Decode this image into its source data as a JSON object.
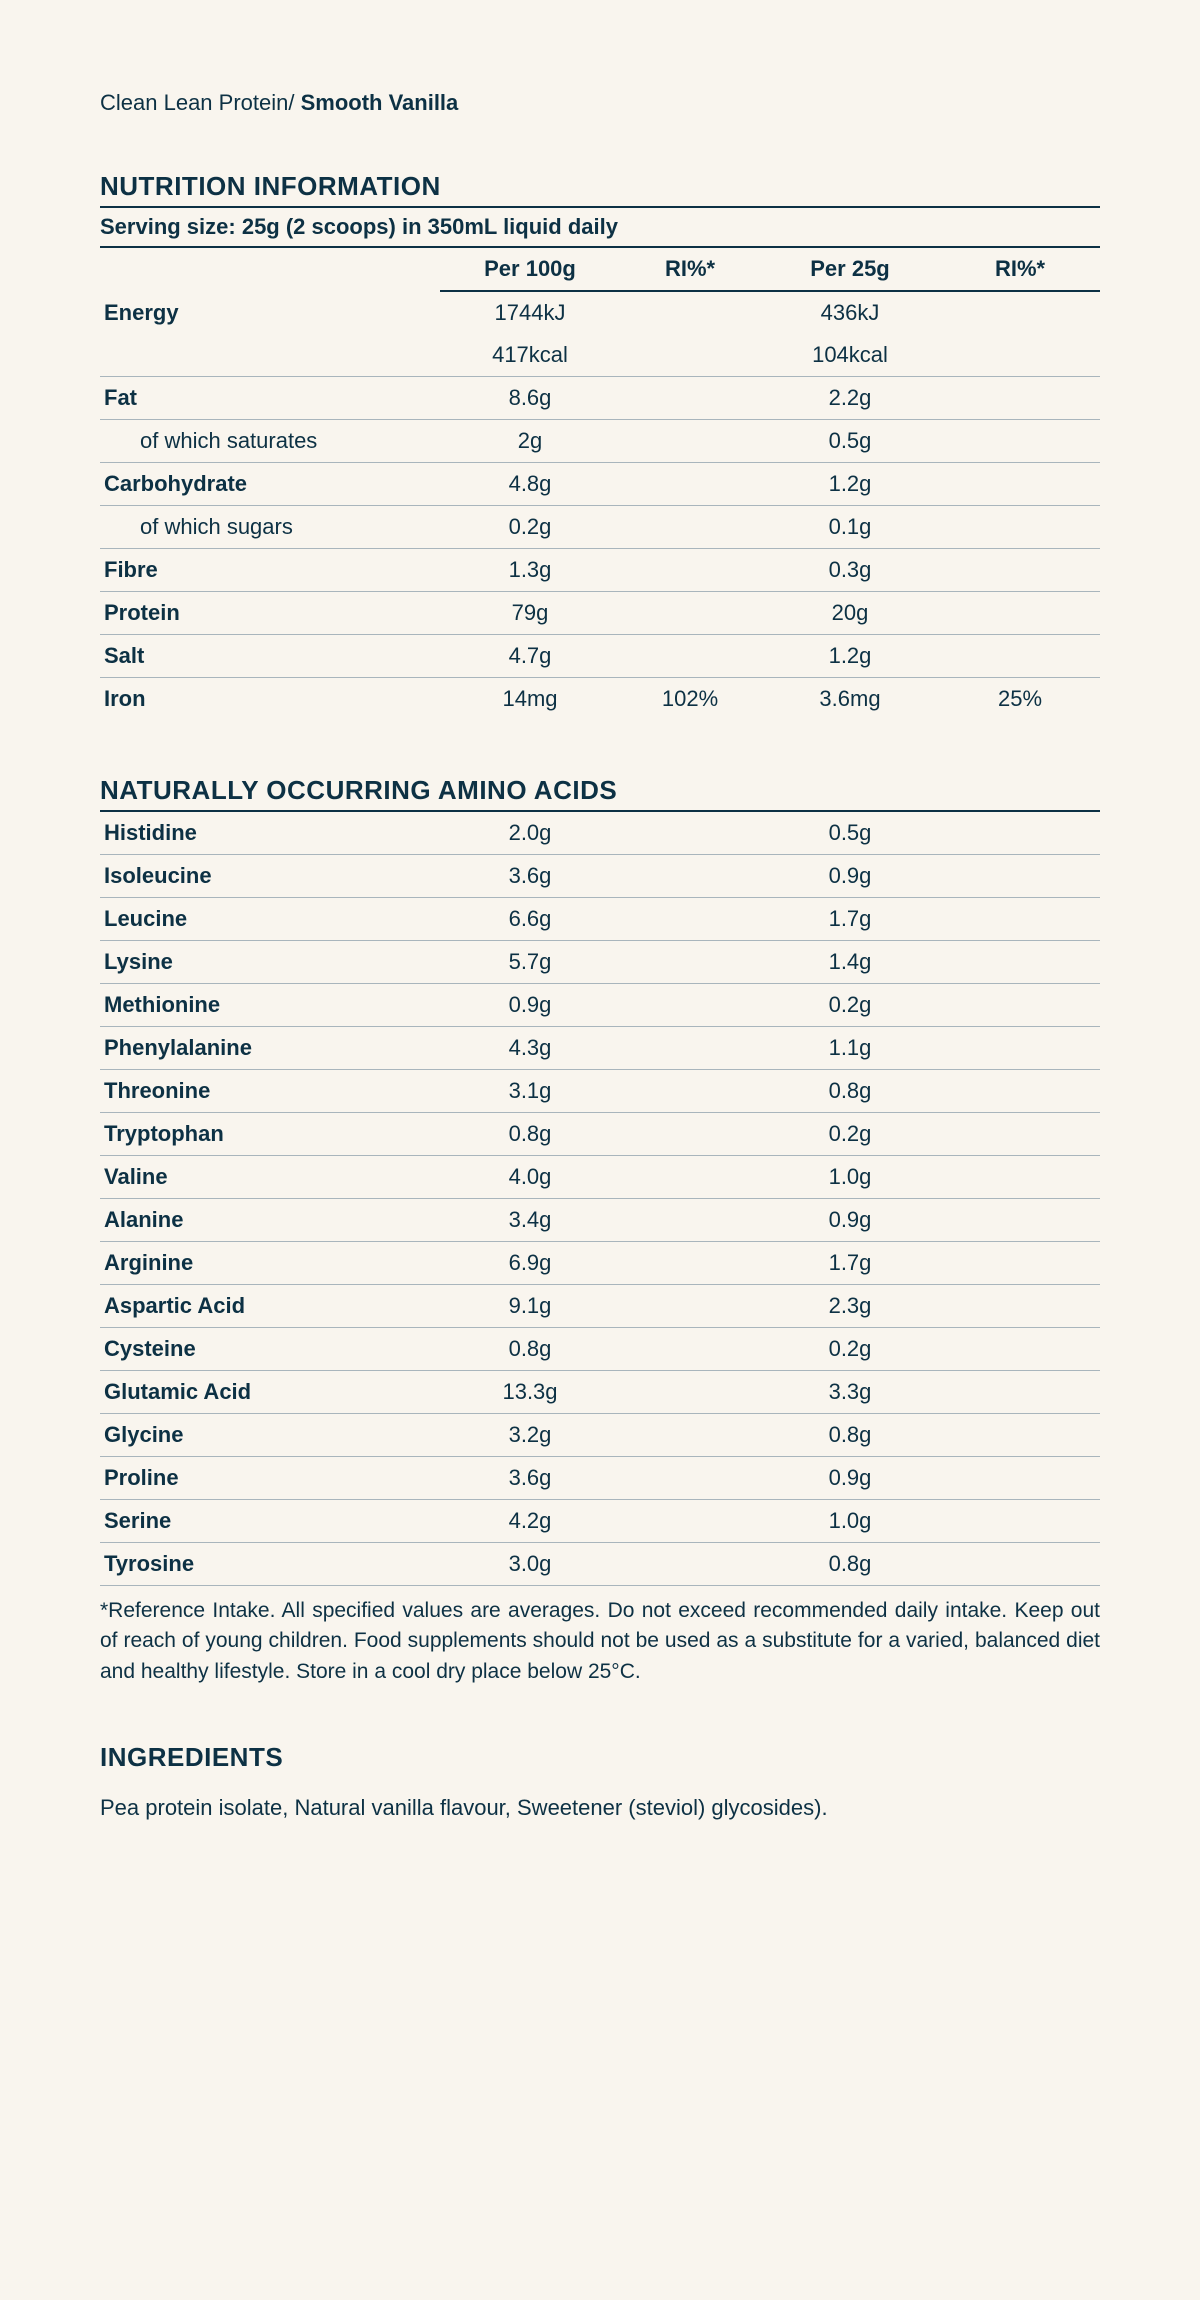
{
  "breadcrumb": {
    "prefix": "Clean Lean Protein/ ",
    "flavour": "Smooth Vanilla"
  },
  "nutrition": {
    "title": "NUTRITION INFORMATION",
    "serving": "Serving size: 25g (2 scoops) in 350mL liquid daily",
    "headers": {
      "per100": "Per 100g",
      "ri1": "RI%*",
      "per25": "Per 25g",
      "ri2": "RI%*"
    },
    "rows": [
      {
        "label": "Energy",
        "per100": "1744kJ",
        "ri1": "",
        "per25": "436kJ",
        "ri2": "",
        "bold": true,
        "border": false
      },
      {
        "label": "",
        "per100": "417kcal",
        "ri1": "",
        "per25": "104kcal",
        "ri2": "",
        "bold": true,
        "border": true
      },
      {
        "label": "Fat",
        "per100": "8.6g",
        "ri1": "",
        "per25": "2.2g",
        "ri2": "",
        "bold": true,
        "border": true
      },
      {
        "label": "of which saturates",
        "per100": "2g",
        "ri1": "",
        "per25": "0.5g",
        "ri2": "",
        "sub": true,
        "border": true
      },
      {
        "label": "Carbohydrate",
        "per100": "4.8g",
        "ri1": "",
        "per25": "1.2g",
        "ri2": "",
        "bold": true,
        "border": true
      },
      {
        "label": "of which sugars",
        "per100": "0.2g",
        "ri1": "",
        "per25": "0.1g",
        "ri2": "",
        "sub": true,
        "border": true
      },
      {
        "label": "Fibre",
        "per100": "1.3g",
        "ri1": "",
        "per25": "0.3g",
        "ri2": "",
        "bold": true,
        "border": true
      },
      {
        "label": "Protein",
        "per100": "79g",
        "ri1": "",
        "per25": "20g",
        "ri2": "",
        "bold": true,
        "border": true
      },
      {
        "label": "Salt",
        "per100": "4.7g",
        "ri1": "",
        "per25": "1.2g",
        "ri2": "",
        "bold": true,
        "border": true
      },
      {
        "label": "Iron",
        "per100": "14mg",
        "ri1": "102%",
        "per25": "3.6mg",
        "ri2": "25%",
        "bold": true,
        "border": false
      }
    ]
  },
  "amino": {
    "title": "NATURALLY OCCURRING AMINO ACIDS",
    "rows": [
      {
        "label": "Histidine",
        "per100": "2.0g",
        "per25": "0.5g"
      },
      {
        "label": "Isoleucine",
        "per100": "3.6g",
        "per25": "0.9g"
      },
      {
        "label": "Leucine",
        "per100": "6.6g",
        "per25": "1.7g"
      },
      {
        "label": "Lysine",
        "per100": "5.7g",
        "per25": "1.4g"
      },
      {
        "label": "Methionine",
        "per100": "0.9g",
        "per25": "0.2g"
      },
      {
        "label": "Phenylalanine",
        "per100": "4.3g",
        "per25": "1.1g"
      },
      {
        "label": "Threonine",
        "per100": "3.1g",
        "per25": "0.8g"
      },
      {
        "label": "Tryptophan",
        "per100": "0.8g",
        "per25": "0.2g"
      },
      {
        "label": "Valine",
        "per100": "4.0g",
        "per25": "1.0g"
      },
      {
        "label": "Alanine",
        "per100": "3.4g",
        "per25": "0.9g"
      },
      {
        "label": "Arginine",
        "per100": "6.9g",
        "per25": "1.7g"
      },
      {
        "label": "Aspartic Acid",
        "per100": "9.1g",
        "per25": "2.3g"
      },
      {
        "label": "Cysteine",
        "per100": "0.8g",
        "per25": "0.2g"
      },
      {
        "label": "Glutamic Acid",
        "per100": "13.3g",
        "per25": "3.3g"
      },
      {
        "label": "Glycine",
        "per100": "3.2g",
        "per25": "0.8g"
      },
      {
        "label": "Proline",
        "per100": "3.6g",
        "per25": "0.9g"
      },
      {
        "label": "Serine",
        "per100": "4.2g",
        "per25": "1.0g"
      },
      {
        "label": "Tyrosine",
        "per100": "3.0g",
        "per25": "0.8g"
      }
    ],
    "footnote": "*Reference Intake. All specified values are averages. Do not exceed recommended daily intake. Keep out of reach of young children. Food supplements should not be used as a substitute for a varied, balanced diet and healthy lifestyle. Store in a cool dry place below 25°C."
  },
  "ingredients": {
    "title": "INGREDIENTS",
    "text": "Pea protein isolate, Natural vanilla flavour, Sweetener (steviol) glycosides)."
  }
}
